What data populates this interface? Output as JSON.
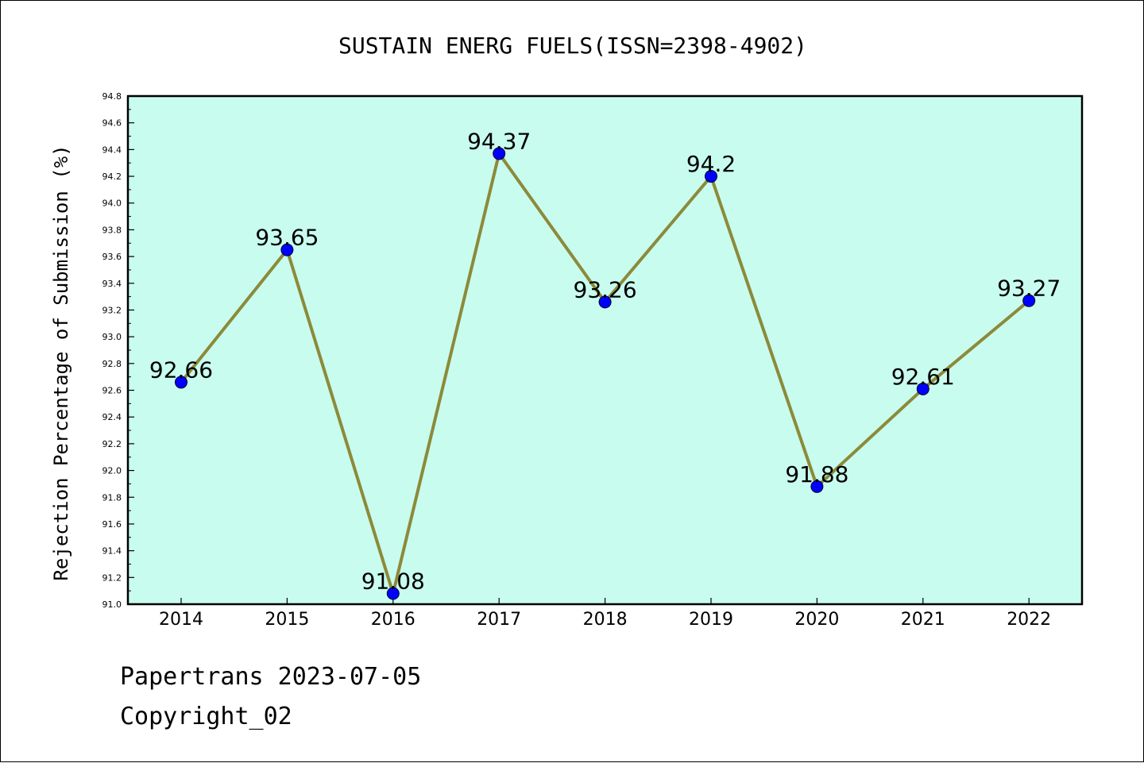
{
  "chart_data": {
    "type": "line",
    "title": "SUSTAIN ENERG FUELS(ISSN=2398-4902)",
    "xlabel": "",
    "ylabel": "Rejection Percentage of Submission (%)",
    "categories": [
      "2014",
      "2015",
      "2016",
      "2017",
      "2018",
      "2019",
      "2020",
      "2021",
      "2022"
    ],
    "series": [
      {
        "values": [
          92.66,
          93.65,
          91.08,
          94.37,
          93.26,
          94.2,
          91.88,
          92.61,
          93.27
        ],
        "data_labels": [
          "92.66",
          "93.65",
          "91.08",
          "94.37",
          "93.26",
          "94.2",
          "91.88",
          "92.61",
          "93.27"
        ]
      }
    ],
    "ylim": [
      91.0,
      94.8
    ],
    "yticks": [
      "91.0",
      "91.2",
      "91.4",
      "91.6",
      "91.8",
      "92.0",
      "92.2",
      "92.4",
      "92.6",
      "92.8",
      "93.0",
      "93.2",
      "93.4",
      "93.6",
      "93.8",
      "94.0",
      "94.2",
      "94.4",
      "94.6",
      "94.8"
    ],
    "grid": false,
    "legend": "none",
    "colors": {
      "plot_background": "#c8fcee",
      "line": "#8c8a3a",
      "marker": "#0000ff",
      "axes": "#000000"
    }
  },
  "footer": {
    "line1": "Papertrans 2023-07-05",
    "line2": "Copyright_02"
  }
}
